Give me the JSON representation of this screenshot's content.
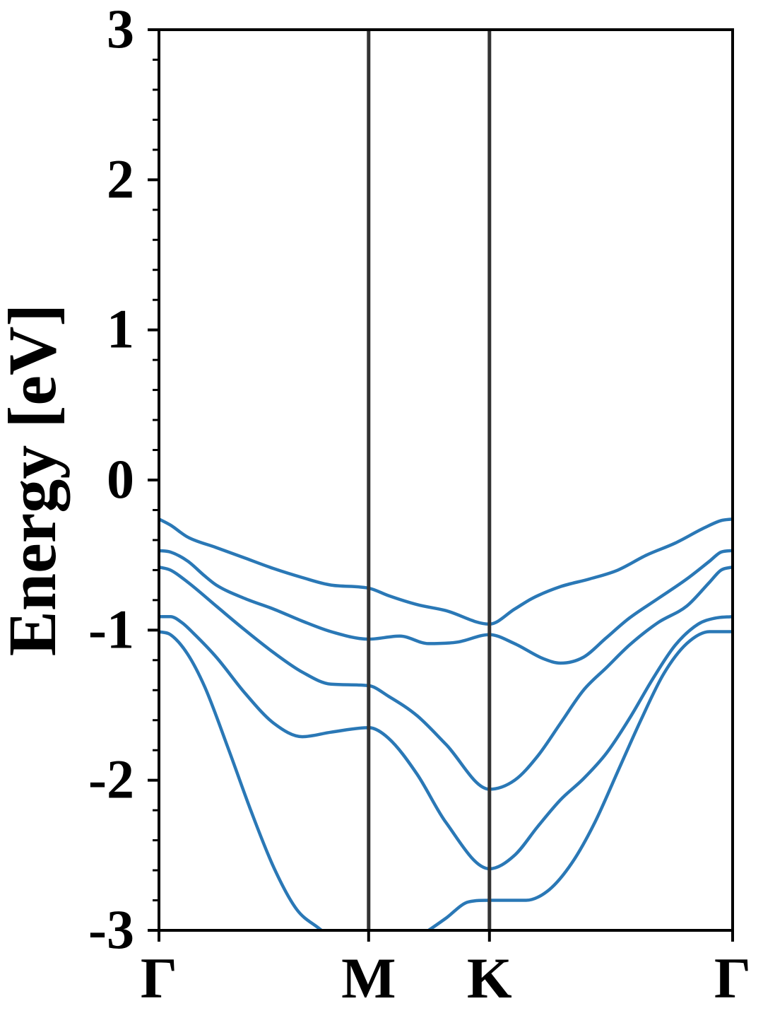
{
  "chart_data": {
    "type": "line",
    "title": "",
    "xlabel": "",
    "ylabel": "Energy [eV]",
    "ylim": [
      -3,
      3
    ],
    "yticks": [
      "3",
      "2",
      "1",
      "0",
      "-1",
      "-2",
      "-3"
    ],
    "ytick_values": [
      3,
      2,
      1,
      0,
      -1,
      -2,
      -3
    ],
    "yminor_step": 0.2,
    "kpath": [
      {
        "label": "Γ",
        "k": 0.0
      },
      {
        "label": "M",
        "k": 0.3655
      },
      {
        "label": "K",
        "k": 0.5761
      },
      {
        "label": "Γ",
        "k": 1.0
      }
    ],
    "high_symmetry_line_color": "#333333",
    "band_color": "#2a78b6",
    "grid": false,
    "legend": "none",
    "series": [
      {
        "points": [
          [
            0.0,
            -0.26
          ],
          [
            0.02,
            -0.3
          ],
          [
            0.05,
            -0.38
          ],
          [
            0.1,
            -0.45
          ],
          [
            0.15,
            -0.52
          ],
          [
            0.2,
            -0.59
          ],
          [
            0.25,
            -0.65
          ],
          [
            0.3,
            -0.7
          ],
          [
            0.3655,
            -0.72
          ],
          [
            0.4,
            -0.77
          ],
          [
            0.45,
            -0.83
          ],
          [
            0.5,
            -0.87
          ],
          [
            0.5761,
            -0.96
          ],
          [
            0.62,
            -0.86
          ],
          [
            0.65,
            -0.79
          ],
          [
            0.7,
            -0.71
          ],
          [
            0.75,
            -0.66
          ],
          [
            0.8,
            -0.6
          ],
          [
            0.85,
            -0.5
          ],
          [
            0.9,
            -0.42
          ],
          [
            0.95,
            -0.32
          ],
          [
            0.98,
            -0.27
          ],
          [
            1.0,
            -0.26
          ]
        ]
      },
      {
        "points": [
          [
            0.0,
            -0.47
          ],
          [
            0.02,
            -0.48
          ],
          [
            0.05,
            -0.54
          ],
          [
            0.08,
            -0.64
          ],
          [
            0.1,
            -0.7
          ],
          [
            0.15,
            -0.79
          ],
          [
            0.2,
            -0.86
          ],
          [
            0.25,
            -0.94
          ],
          [
            0.3,
            -1.01
          ],
          [
            0.3655,
            -1.06
          ],
          [
            0.42,
            -1.04
          ],
          [
            0.47,
            -1.09
          ],
          [
            0.52,
            -1.08
          ],
          [
            0.5761,
            -1.03
          ],
          [
            0.62,
            -1.09
          ],
          [
            0.67,
            -1.19
          ],
          [
            0.7,
            -1.22
          ],
          [
            0.74,
            -1.18
          ],
          [
            0.78,
            -1.05
          ],
          [
            0.82,
            -0.92
          ],
          [
            0.87,
            -0.79
          ],
          [
            0.92,
            -0.66
          ],
          [
            0.96,
            -0.54
          ],
          [
            0.98,
            -0.48
          ],
          [
            1.0,
            -0.47
          ]
        ]
      },
      {
        "points": [
          [
            0.0,
            -0.58
          ],
          [
            0.02,
            -0.6
          ],
          [
            0.05,
            -0.68
          ],
          [
            0.1,
            -0.84
          ],
          [
            0.15,
            -1.0
          ],
          [
            0.2,
            -1.15
          ],
          [
            0.25,
            -1.28
          ],
          [
            0.3,
            -1.36
          ],
          [
            0.3655,
            -1.37
          ],
          [
            0.4,
            -1.44
          ],
          [
            0.45,
            -1.57
          ],
          [
            0.5,
            -1.76
          ],
          [
            0.5761,
            -2.06
          ],
          [
            0.62,
            -2.0
          ],
          [
            0.66,
            -1.84
          ],
          [
            0.7,
            -1.62
          ],
          [
            0.74,
            -1.4
          ],
          [
            0.78,
            -1.25
          ],
          [
            0.82,
            -1.1
          ],
          [
            0.87,
            -0.95
          ],
          [
            0.92,
            -0.84
          ],
          [
            0.96,
            -0.68
          ],
          [
            0.98,
            -0.6
          ],
          [
            1.0,
            -0.58
          ]
        ]
      },
      {
        "points": [
          [
            0.0,
            -0.91
          ],
          [
            0.02,
            -0.91
          ],
          [
            0.04,
            -0.95
          ],
          [
            0.06,
            -1.02
          ],
          [
            0.1,
            -1.18
          ],
          [
            0.15,
            -1.42
          ],
          [
            0.2,
            -1.62
          ],
          [
            0.25,
            -1.71
          ],
          [
            0.3,
            -1.68
          ],
          [
            0.3655,
            -1.65
          ],
          [
            0.4,
            -1.72
          ],
          [
            0.45,
            -1.96
          ],
          [
            0.5,
            -2.28
          ],
          [
            0.5761,
            -2.59
          ],
          [
            0.62,
            -2.5
          ],
          [
            0.66,
            -2.31
          ],
          [
            0.7,
            -2.13
          ],
          [
            0.74,
            -1.99
          ],
          [
            0.78,
            -1.82
          ],
          [
            0.82,
            -1.59
          ],
          [
            0.86,
            -1.33
          ],
          [
            0.9,
            -1.1
          ],
          [
            0.94,
            -0.96
          ],
          [
            0.97,
            -0.92
          ],
          [
            1.0,
            -0.91
          ]
        ]
      },
      {
        "points": [
          [
            0.0,
            -1.01
          ],
          [
            0.02,
            -1.03
          ],
          [
            0.05,
            -1.16
          ],
          [
            0.08,
            -1.38
          ],
          [
            0.12,
            -1.78
          ],
          [
            0.16,
            -2.2
          ],
          [
            0.2,
            -2.58
          ],
          [
            0.24,
            -2.86
          ],
          [
            0.28,
            -2.99
          ],
          [
            0.3,
            -3.05
          ]
        ]
      },
      {
        "points": [
          [
            0.45,
            -3.05
          ],
          [
            0.47,
            -3.0
          ],
          [
            0.5,
            -2.92
          ],
          [
            0.54,
            -2.81
          ],
          [
            0.5761,
            -2.8
          ],
          [
            0.61,
            -2.8
          ],
          [
            0.64,
            -2.8
          ],
          [
            0.68,
            -2.73
          ],
          [
            0.72,
            -2.55
          ],
          [
            0.76,
            -2.28
          ],
          [
            0.8,
            -1.94
          ],
          [
            0.84,
            -1.6
          ],
          [
            0.88,
            -1.29
          ],
          [
            0.92,
            -1.09
          ],
          [
            0.96,
            -1.01
          ],
          [
            1.0,
            -1.01
          ]
        ]
      }
    ]
  }
}
